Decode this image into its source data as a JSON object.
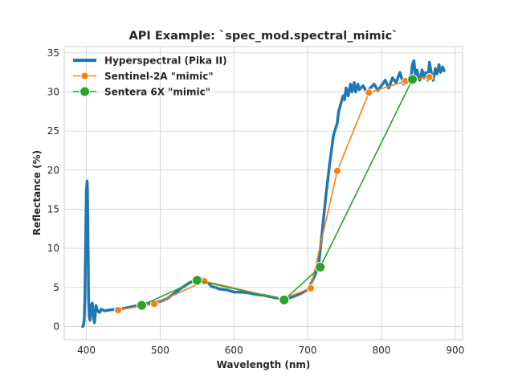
{
  "chart_data": {
    "type": "line",
    "title": "API Example: `spec_mod.spectral_mimic`",
    "xlabel": "Wavelength (nm)",
    "ylabel": "Reflectance (%)",
    "xlim": [
      370,
      910
    ],
    "ylim": [
      -1.7,
      35.8
    ],
    "xticks": [
      400,
      500,
      600,
      700,
      800,
      900
    ],
    "yticks": [
      0,
      5,
      10,
      15,
      20,
      25,
      30,
      35
    ],
    "grid": true,
    "legend_position": "top-left",
    "series": [
      {
        "name": "Hyperspectral (Pika II)",
        "color": "#1f77b4",
        "marker": "none",
        "x": [
          395,
          396,
          397,
          398,
          399,
          400,
          401,
          401.5,
          402,
          402.5,
          403,
          404,
          405,
          406,
          407,
          408,
          409,
          410,
          411,
          412,
          413,
          415,
          418,
          420,
          425,
          430,
          440,
          450,
          460,
          470,
          480,
          490,
          500,
          510,
          520,
          530,
          540,
          550,
          555,
          560,
          565,
          570,
          575,
          580,
          590,
          600,
          610,
          620,
          630,
          640,
          650,
          660,
          665,
          670,
          680,
          690,
          700,
          705,
          710,
          715,
          720,
          725,
          730,
          735,
          740,
          742,
          745,
          748,
          750,
          752,
          755,
          758,
          760,
          763,
          765,
          768,
          770,
          775,
          780,
          785,
          790,
          795,
          800,
          805,
          810,
          815,
          820,
          825,
          830,
          835,
          840,
          842,
          844,
          846,
          848,
          850,
          852,
          855,
          858,
          860,
          863,
          865,
          868,
          870,
          873,
          875,
          878,
          880,
          883,
          885
        ],
        "y": [
          0,
          0.2,
          0.8,
          3.5,
          10.5,
          17.5,
          18.6,
          17.5,
          13,
          8,
          3.5,
          1.2,
          0.8,
          1.8,
          2.8,
          3.0,
          2.2,
          1.0,
          0.5,
          1.5,
          2.7,
          2.0,
          1.8,
          2.2,
          2.0,
          2.1,
          2.2,
          2.3,
          2.5,
          2.7,
          2.9,
          3.1,
          3.2,
          3.6,
          4.3,
          5.0,
          5.6,
          6.0,
          6.2,
          5.7,
          5.6,
          5.1,
          5.0,
          4.8,
          4.7,
          4.4,
          4.4,
          4.3,
          4.1,
          4.0,
          3.8,
          3.6,
          3.4,
          3.5,
          3.8,
          4.2,
          4.7,
          5.6,
          6.6,
          8.0,
          12.5,
          17.0,
          21.0,
          24.5,
          26.0,
          27.5,
          28.5,
          29.5,
          29.0,
          30.5,
          29.5,
          31.0,
          30.0,
          31.2,
          30.0,
          31.0,
          30.3,
          30.8,
          30.0,
          30.5,
          31.0,
          30.2,
          30.8,
          31.5,
          30.5,
          31.8,
          31.2,
          32.5,
          31.0,
          31.5,
          31.8,
          33.5,
          34.0,
          32.0,
          32.8,
          32.0,
          31.5,
          32.8,
          31.8,
          32.5,
          31.5,
          33.8,
          32.2,
          31.5,
          33.0,
          32.3,
          33.5,
          32.5,
          33.2,
          32.7
        ]
      },
      {
        "name": "Sentinel-2A \"mimic\"",
        "color": "#ff7f0e",
        "marker": "circle",
        "x": [
          443,
          492,
          560,
          665,
          704,
          740,
          783,
          833,
          865
        ],
        "y": [
          2.1,
          2.9,
          5.8,
          3.5,
          4.9,
          19.9,
          29.9,
          31.4,
          31.9
        ]
      },
      {
        "name": "Sentera 6X \"mimic\"",
        "color": "#2ca02c",
        "marker": "circle",
        "x": [
          475,
          550,
          668,
          717,
          842
        ],
        "y": [
          2.7,
          5.9,
          3.4,
          7.6,
          31.6
        ]
      }
    ]
  }
}
